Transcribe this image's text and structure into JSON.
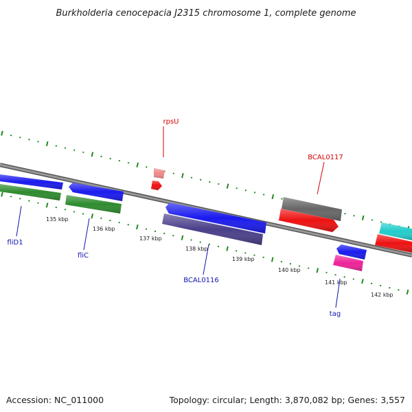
{
  "title": "Burkholderia cenocepacia J2315 chromosome 1, complete genome",
  "footer": {
    "accession": "Accession: NC_011000",
    "summary": "Topology: circular; Length: 3,870,082 bp; Genes: 3,557"
  },
  "colors": {
    "backbone": "#777777",
    "tick": "#1f8a1f",
    "label_red": "#d40000",
    "label_blue": "#1010b0"
  },
  "ticks": [
    "135 kbp",
    "136 kbp",
    "137 kbp",
    "138 kbp",
    "139 kbp",
    "140 kbp",
    "141 kbp",
    "142 kbp"
  ],
  "genes": [
    {
      "name": "fliD1",
      "color": "#1a1aee"
    },
    {
      "name": "fliD1 CDS",
      "color": "#2e8b2e"
    },
    {
      "name": "fliC",
      "color": "#1a1aee"
    },
    {
      "name": "fliC CDS",
      "color": "#2e8b2e"
    },
    {
      "name": "rpsU",
      "color": "#ee8888"
    },
    {
      "name": "rpsU CDS",
      "color": "#ee1111"
    },
    {
      "name": "BCAL0116",
      "color": "#1a1aee"
    },
    {
      "name": "BCAL0116 CDS",
      "color": "#4a3f8a"
    },
    {
      "name": "BCAL0117",
      "color": "#666666"
    },
    {
      "name": "BCAL0117 CDS",
      "color": "#ee1111"
    },
    {
      "name": "tag",
      "color": "#1a1aee"
    },
    {
      "name": "tag CDS",
      "color": "#ee2299"
    },
    {
      "name": "next gene",
      "color": "#22cccc"
    },
    {
      "name": "next gene CDS",
      "color": "#ee1111"
    }
  ],
  "labels": {
    "rpsU": "rpsU",
    "bcal0117": "BCAL0117",
    "flid1": "fliD1",
    "flic": "fliC",
    "bcal0116": "BCAL0116",
    "tag": "tag"
  }
}
